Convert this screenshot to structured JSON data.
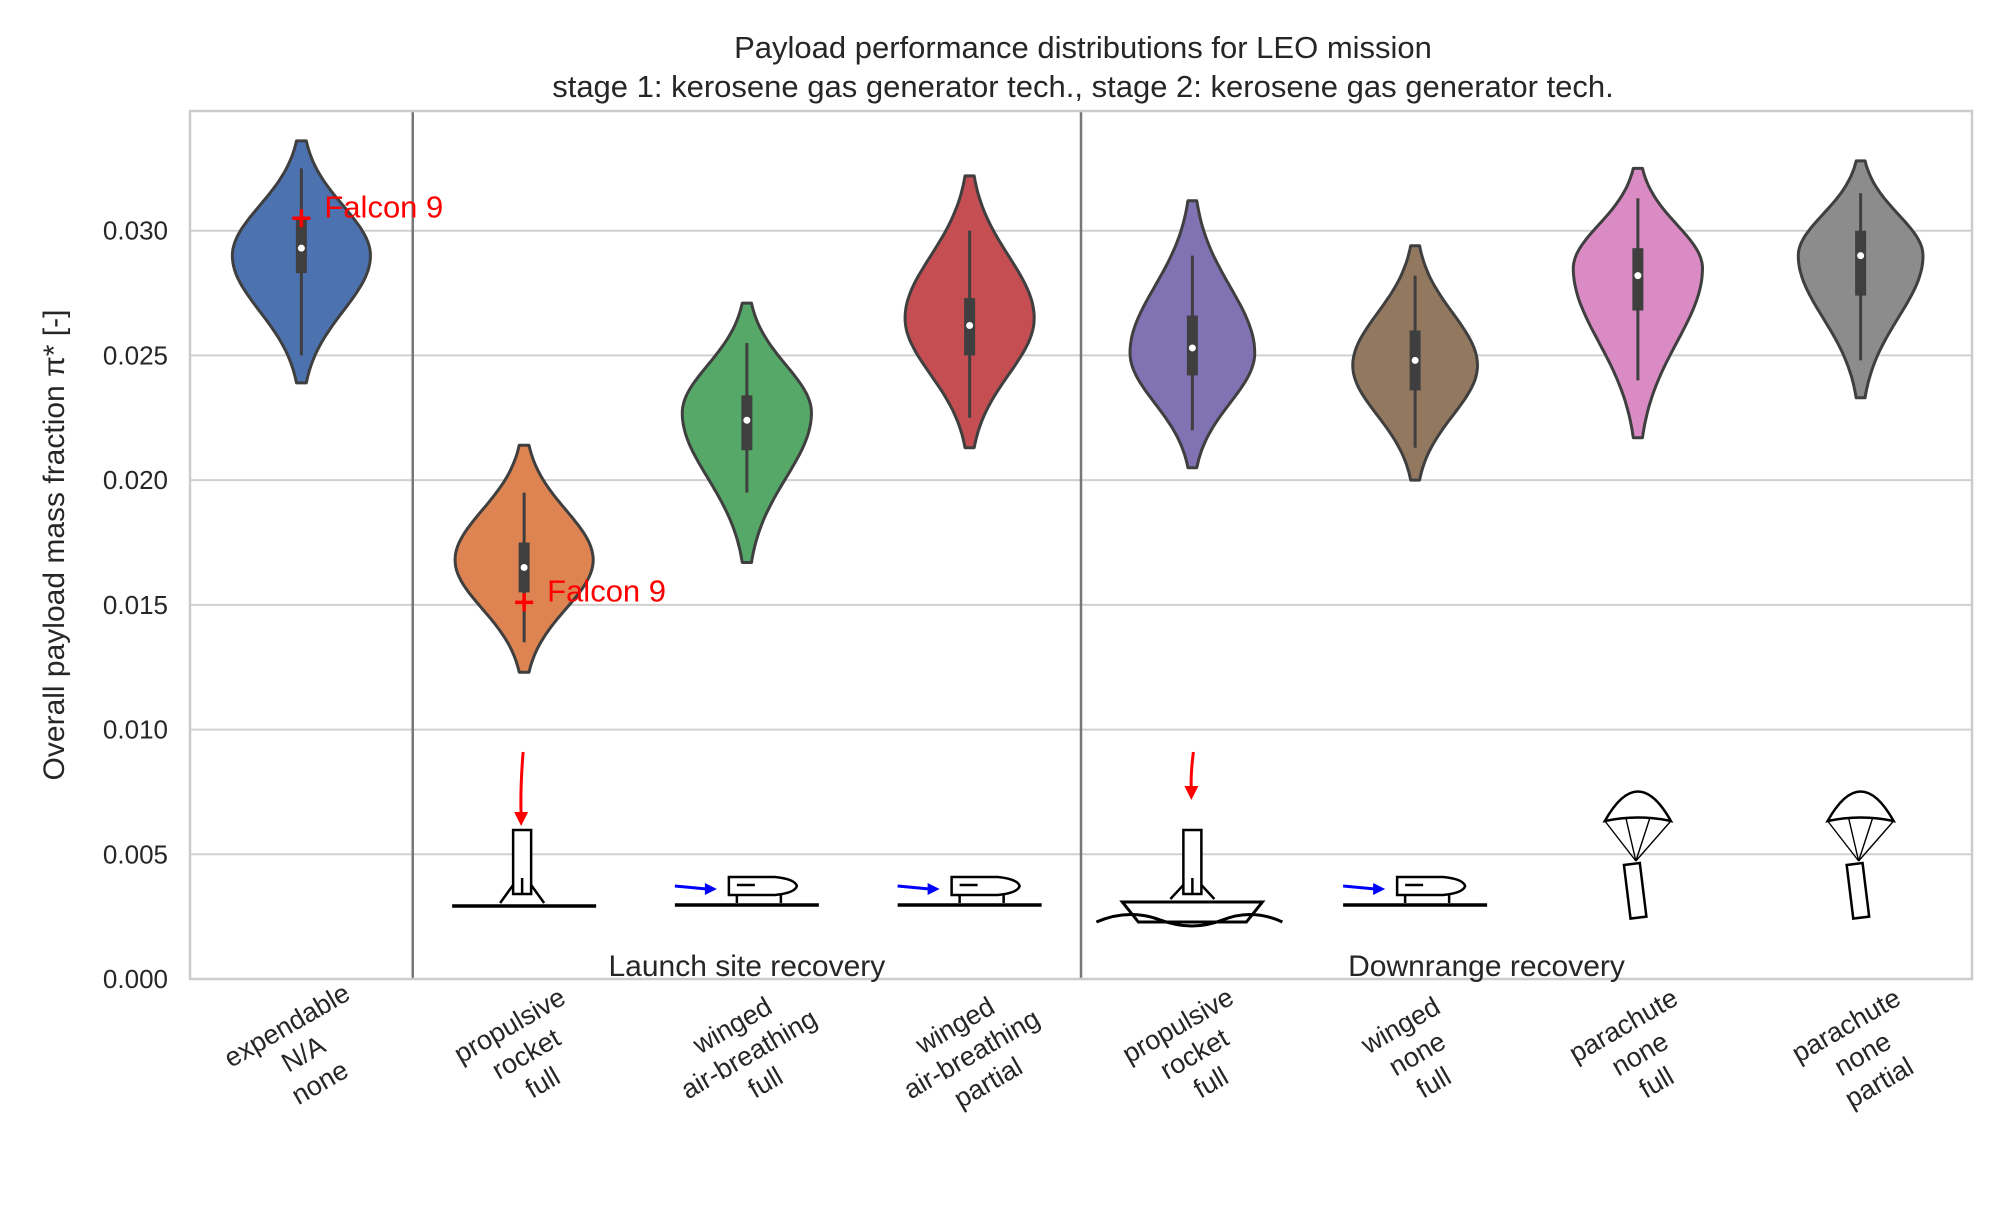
{
  "chart_data": {
    "type": "violin",
    "title": "Payload performance distributions for LEO mission",
    "subtitle": "stage 1: kerosene gas generator tech., stage 2: kerosene gas generator tech.",
    "ylabel": "Overall payload mass fraction π* [-]",
    "xlabel": "",
    "ylim": [
      0,
      0.0348
    ],
    "yticks": [
      0.0,
      0.005,
      0.01,
      0.015,
      0.02,
      0.025,
      0.03
    ],
    "ytick_labels": [
      "0.000",
      "0.005",
      "0.010",
      "0.015",
      "0.020",
      "0.025",
      "0.030"
    ],
    "grid": "horizontal",
    "categories": [
      {
        "lines": [
          "expendable",
          "N/A",
          "none"
        ],
        "color": "#4c72b0",
        "median": 0.0293,
        "q1": 0.0283,
        "q3": 0.0305,
        "whisker_low": 0.025,
        "whisker_high": 0.0325,
        "min": 0.0239,
        "max": 0.0336,
        "mode": 0.029,
        "width": 0.62,
        "icon": "none"
      },
      {
        "lines": [
          "propulsive",
          "rocket",
          "full"
        ],
        "color": "#dd8452",
        "median": 0.0165,
        "q1": 0.0155,
        "q3": 0.0175,
        "whisker_low": 0.0135,
        "whisker_high": 0.0195,
        "min": 0.0123,
        "max": 0.0214,
        "mode": 0.0168,
        "width": 0.62,
        "icon": "rocket-landing-pad-icon"
      },
      {
        "lines": [
          "winged",
          "air-breathing",
          "full"
        ],
        "color": "#55a868",
        "median": 0.0224,
        "q1": 0.0212,
        "q3": 0.0234,
        "whisker_low": 0.0195,
        "whisker_high": 0.0255,
        "min": 0.0167,
        "max": 0.0271,
        "mode": 0.0227,
        "width": 0.58,
        "icon": "winged-air-breathing-icon"
      },
      {
        "lines": [
          "winged",
          "air-breathing",
          "partial"
        ],
        "color": "#c44e52",
        "median": 0.0262,
        "q1": 0.025,
        "q3": 0.0273,
        "whisker_low": 0.0225,
        "whisker_high": 0.03,
        "min": 0.0213,
        "max": 0.0322,
        "mode": 0.0265,
        "width": 0.58,
        "icon": "winged-air-breathing-icon"
      },
      {
        "lines": [
          "propulsive",
          "rocket",
          "full"
        ],
        "color": "#8172b3",
        "median": 0.0253,
        "q1": 0.0242,
        "q3": 0.0266,
        "whisker_low": 0.022,
        "whisker_high": 0.029,
        "min": 0.0205,
        "max": 0.0312,
        "mode": 0.0251,
        "width": 0.56,
        "icon": "rocket-drone-ship-icon"
      },
      {
        "lines": [
          "winged",
          "none",
          "full"
        ],
        "color": "#937860",
        "median": 0.0248,
        "q1": 0.0236,
        "q3": 0.026,
        "whisker_low": 0.0213,
        "whisker_high": 0.0282,
        "min": 0.02,
        "max": 0.0294,
        "mode": 0.0246,
        "width": 0.56,
        "icon": "winged-glider-icon"
      },
      {
        "lines": [
          "parachute",
          "none",
          "full"
        ],
        "color": "#da8bc3",
        "median": 0.0282,
        "q1": 0.0268,
        "q3": 0.0293,
        "whisker_low": 0.024,
        "whisker_high": 0.0313,
        "min": 0.0217,
        "max": 0.0325,
        "mode": 0.0285,
        "width": 0.58,
        "icon": "parachute-icon"
      },
      {
        "lines": [
          "parachute",
          "none",
          "partial"
        ],
        "color": "#8c8c8c",
        "median": 0.029,
        "q1": 0.0274,
        "q3": 0.03,
        "whisker_low": 0.0248,
        "whisker_high": 0.0315,
        "min": 0.0233,
        "max": 0.0328,
        "mode": 0.029,
        "width": 0.56,
        "icon": "parachute-icon"
      }
    ],
    "group_labels": [
      {
        "text": "Launch site recovery",
        "from": 1,
        "to": 3
      },
      {
        "text": "Downrange recovery",
        "from": 4,
        "to": 7
      }
    ],
    "separators_after": [
      0,
      3
    ],
    "annotations": [
      {
        "category": 0,
        "y": 0.0305,
        "text": "Falcon 9",
        "marker": "+",
        "color": "#ff0000"
      },
      {
        "category": 1,
        "y": 0.0151,
        "text": "Falcon 9",
        "marker": "+",
        "color": "#ff0000"
      }
    ]
  }
}
